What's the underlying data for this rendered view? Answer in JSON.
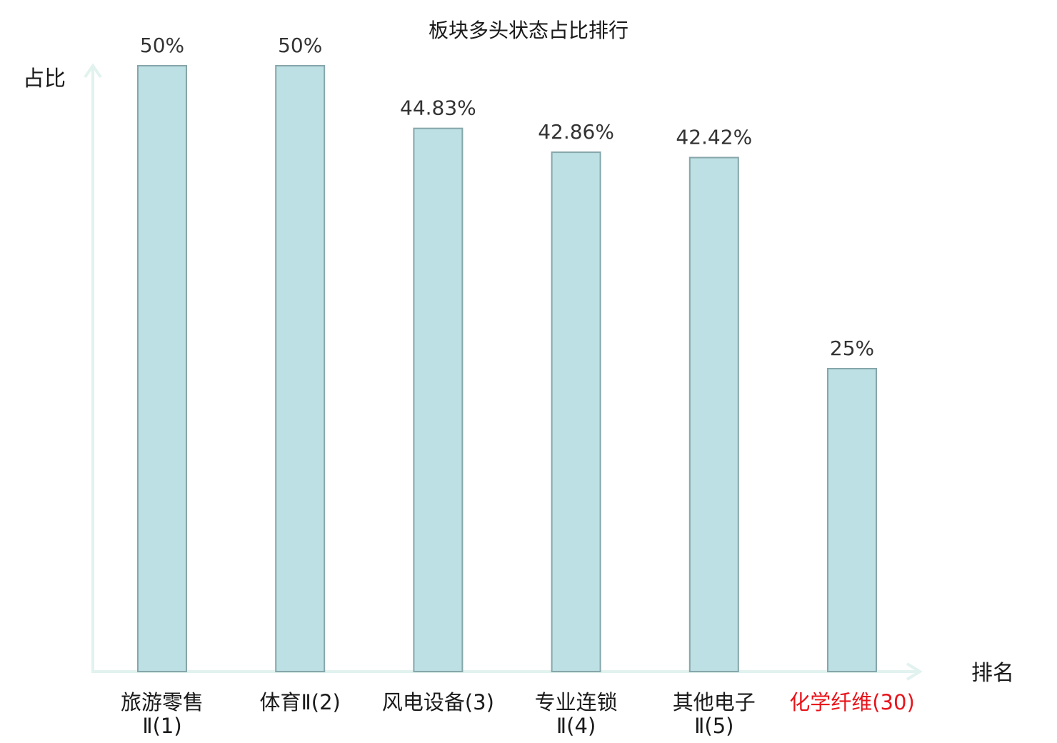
{
  "chart_data": {
    "type": "bar",
    "title": "板块多头状态占比排行",
    "ylabel": "占比",
    "xlabel": "排名",
    "ylim": [
      0,
      0.5
    ],
    "grid": false,
    "legend": "none",
    "categories": [
      {
        "lines": [
          "旅游零售",
          "Ⅱ(1)"
        ],
        "highlight": false
      },
      {
        "lines": [
          "体育Ⅱ(2)"
        ],
        "highlight": false
      },
      {
        "lines": [
          "风电设备(3)"
        ],
        "highlight": false
      },
      {
        "lines": [
          "专业连锁",
          "Ⅱ(4)"
        ],
        "highlight": false
      },
      {
        "lines": [
          "其他电子",
          "Ⅱ(5)"
        ],
        "highlight": false
      },
      {
        "lines": [
          "化学纤维(30)"
        ],
        "highlight": true
      }
    ],
    "values": [
      0.5,
      0.5,
      0.4483,
      0.4286,
      0.4242,
      0.25
    ],
    "value_labels": [
      "50%",
      "50%",
      "44.83%",
      "42.86%",
      "42.42%",
      "25%"
    ]
  },
  "colors": {
    "bar_fill": "#bce0e3",
    "bar_stroke": "#86a6aa",
    "axis": "#e1f2ef",
    "text": "#1a1a1a",
    "value_text": "#333333",
    "highlight": "#e8141b"
  }
}
